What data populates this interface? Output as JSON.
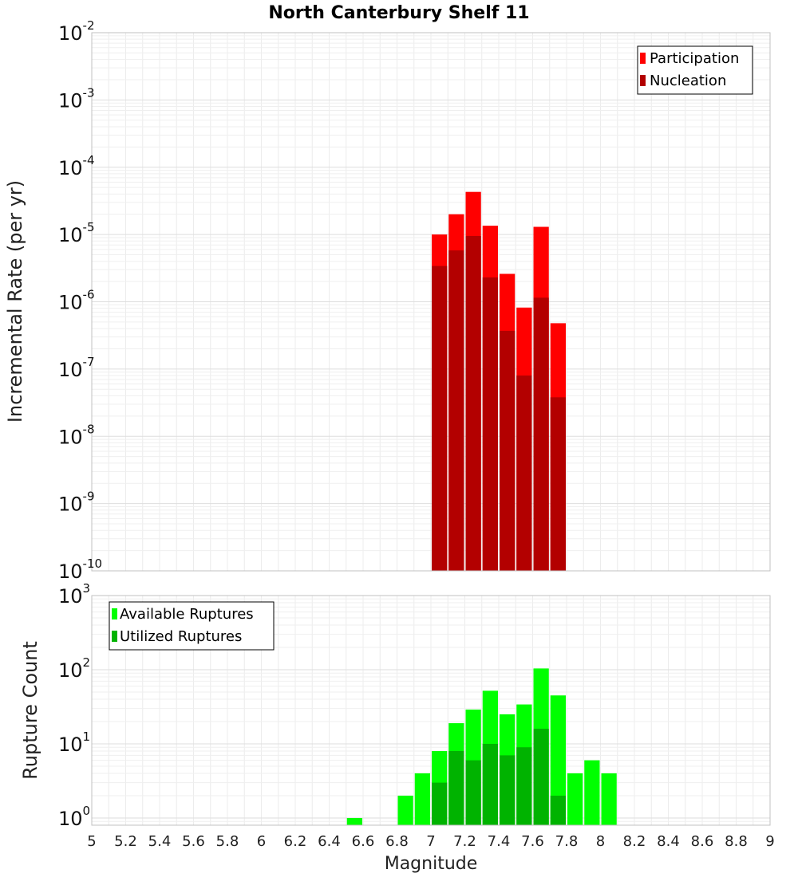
{
  "chart_data": [
    {
      "type": "bar",
      "title": "North Canterbury Shelf 11",
      "ylabel": "Incremental Rate (per yr)",
      "xlabel": "",
      "yscale": "log",
      "ylim": [
        1e-10,
        0.01
      ],
      "xlim": [
        5,
        9
      ],
      "grid": true,
      "legend_position": "top-right",
      "bar_width": 0.1,
      "y_ticks": [
        {
          "base": "10",
          "exp": "-10"
        },
        {
          "base": "10",
          "exp": "-9"
        },
        {
          "base": "10",
          "exp": "-8"
        },
        {
          "base": "10",
          "exp": "-7"
        },
        {
          "base": "10",
          "exp": "-6"
        },
        {
          "base": "10",
          "exp": "-5"
        },
        {
          "base": "10",
          "exp": "-4"
        },
        {
          "base": "10",
          "exp": "-3"
        },
        {
          "base": "10",
          "exp": "-2"
        }
      ],
      "series": [
        {
          "name": "Participation",
          "color": "#ff0000",
          "x": [
            7.05,
            7.15,
            7.25,
            7.35,
            7.45,
            7.55,
            7.65,
            7.75
          ],
          "values": [
            1e-05,
            2e-05,
            4.3e-05,
            1.35e-05,
            2.6e-06,
            8.2e-07,
            1.3e-05,
            4.8e-07
          ]
        },
        {
          "name": "Nucleation",
          "color": "#b30000",
          "x": [
            7.05,
            7.15,
            7.25,
            7.35,
            7.45,
            7.55,
            7.65,
            7.75
          ],
          "values": [
            3.4e-06,
            5.8e-06,
            9.5e-06,
            2.3e-06,
            3.7e-07,
            8e-08,
            1.15e-06,
            3.8e-08
          ]
        }
      ]
    },
    {
      "type": "bar",
      "ylabel": "Rupture Count",
      "xlabel": "Magnitude",
      "yscale": "log",
      "ylim": [
        0.8,
        1000
      ],
      "xlim": [
        5,
        9
      ],
      "grid": true,
      "legend_position": "top-left",
      "bar_width": 0.1,
      "x_ticks": [
        "5",
        "5.2",
        "5.4",
        "5.6",
        "5.8",
        "6",
        "6.2",
        "6.4",
        "6.6",
        "6.8",
        "7",
        "7.2",
        "7.4",
        "7.6",
        "7.8",
        "8",
        "8.2",
        "8.4",
        "8.6",
        "8.8",
        "9"
      ],
      "y_ticks": [
        {
          "base": "10",
          "exp": "0"
        },
        {
          "base": "10",
          "exp": "1"
        },
        {
          "base": "10",
          "exp": "2"
        },
        {
          "base": "10",
          "exp": "3"
        }
      ],
      "series": [
        {
          "name": "Available Ruptures",
          "color": "#00ff00",
          "x": [
            6.55,
            6.85,
            6.95,
            7.05,
            7.15,
            7.25,
            7.35,
            7.45,
            7.55,
            7.65,
            7.75,
            7.85,
            7.95,
            8.05
          ],
          "values": [
            1,
            2,
            4,
            8,
            19,
            29,
            52,
            25,
            34,
            104,
            45,
            4,
            6,
            4
          ]
        },
        {
          "name": "Utilized Ruptures",
          "color": "#00b300",
          "x": [
            7.05,
            7.15,
            7.25,
            7.35,
            7.45,
            7.55,
            7.65,
            7.75
          ],
          "values": [
            3,
            8,
            6,
            10,
            7,
            9,
            16,
            2
          ]
        }
      ]
    }
  ]
}
